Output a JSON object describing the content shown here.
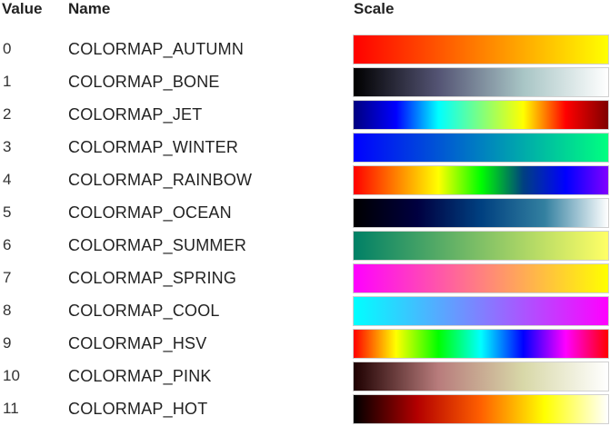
{
  "table": {
    "headers": {
      "value": "Value",
      "name": "Name",
      "scale": "Scale"
    },
    "rows": [
      {
        "value": "0",
        "name": "COLORMAP_AUTUMN",
        "colors": [
          "#ff0000",
          "#ff8000",
          "#ffff00"
        ]
      },
      {
        "value": "1",
        "name": "COLORMAP_BONE",
        "colors": [
          "#000000",
          "#545474",
          "#a8c5c5",
          "#ffffff"
        ]
      },
      {
        "value": "2",
        "name": "COLORMAP_JET",
        "colors": [
          "#00007f",
          "#0000ff",
          "#00ffff",
          "#7fff7f",
          "#ffff00",
          "#ff0000",
          "#7f0000"
        ]
      },
      {
        "value": "3",
        "name": "COLORMAP_WINTER",
        "colors": [
          "#0000ff",
          "#0080c0",
          "#00ff80"
        ]
      },
      {
        "value": "4",
        "name": "COLORMAP_RAINBOW",
        "colors": [
          "#ff0000",
          "#ff8000",
          "#ffff00",
          "#00ff00",
          "#004080",
          "#0000ff",
          "#8000ff"
        ]
      },
      {
        "value": "5",
        "name": "COLORMAP_OCEAN",
        "colors": [
          "#000000",
          "#000040",
          "#004080",
          "#3380a0",
          "#ffffff"
        ]
      },
      {
        "value": "6",
        "name": "COLORMAP_SUMMER",
        "colors": [
          "#008066",
          "#80c066",
          "#ffff66"
        ]
      },
      {
        "value": "7",
        "name": "COLORMAP_SPRING",
        "colors": [
          "#ff00ff",
          "#ff8080",
          "#ffff00"
        ]
      },
      {
        "value": "8",
        "name": "COLORMAP_COOL",
        "colors": [
          "#00ffff",
          "#8080ff",
          "#ff00ff"
        ]
      },
      {
        "value": "9",
        "name": "COLORMAP_HSV",
        "colors": [
          "#ff0000",
          "#ffff00",
          "#00ff00",
          "#00ffff",
          "#0000ff",
          "#ff00ff",
          "#ff0000"
        ]
      },
      {
        "value": "10",
        "name": "COLORMAP_PINK",
        "colors": [
          "#1e0000",
          "#b87c7c",
          "#d8d8a8",
          "#ffffff"
        ]
      },
      {
        "value": "11",
        "name": "COLORMAP_HOT",
        "colors": [
          "#000000",
          "#b30000",
          "#ff6000",
          "#ffff00",
          "#ffffff"
        ]
      }
    ]
  }
}
